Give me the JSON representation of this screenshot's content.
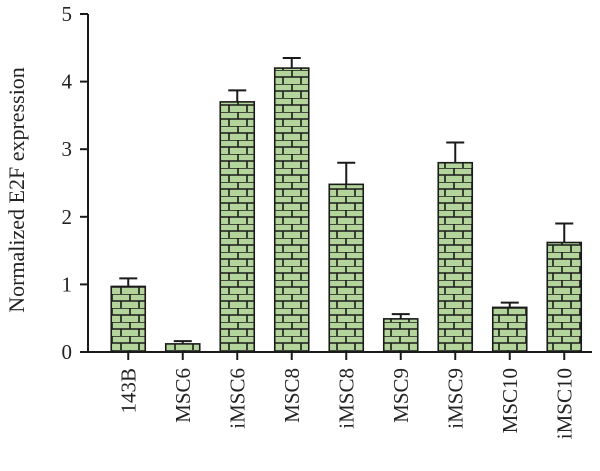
{
  "chart_data": {
    "type": "bar",
    "title": "",
    "xlabel": "",
    "ylabel": "Normalized E2F expression",
    "ylim": [
      0,
      5
    ],
    "yticks": [
      "0",
      "1",
      "2",
      "3",
      "4",
      "5"
    ],
    "categories": [
      "143B",
      "MSC6",
      "iMSC6",
      "MSC8",
      "iMSC8",
      "MSC9",
      "iMSC9",
      "MSC10",
      "iMSC10"
    ],
    "values": [
      0.97,
      0.12,
      3.7,
      4.2,
      2.48,
      0.49,
      2.8,
      0.66,
      1.62
    ],
    "errors": [
      0.12,
      0.04,
      0.17,
      0.15,
      0.32,
      0.07,
      0.3,
      0.07,
      0.28
    ],
    "bar_color": "#b3d59b",
    "bar_pattern": "brick",
    "grid": false,
    "legend": "none"
  }
}
